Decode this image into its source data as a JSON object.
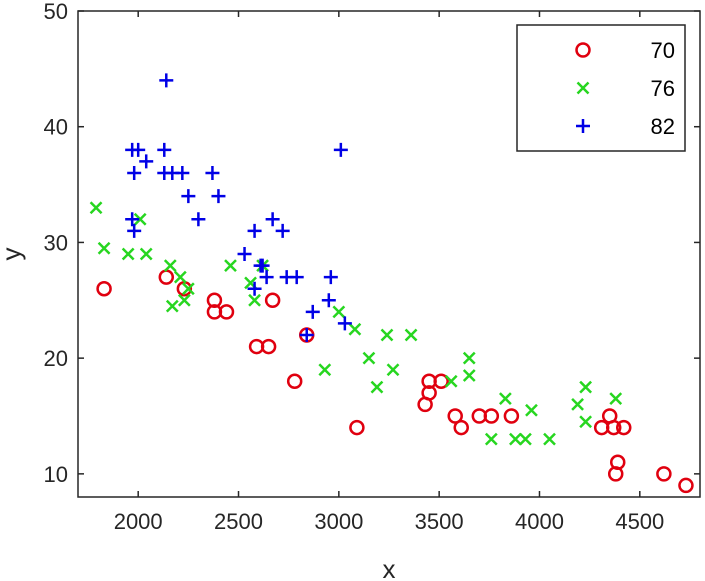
{
  "chart_data": {
    "type": "scatter",
    "title": "",
    "xlabel": "x",
    "ylabel": "y",
    "xlim": [
      1700,
      4800
    ],
    "ylim": [
      8,
      50
    ],
    "xticks": [
      2000,
      2500,
      3000,
      3500,
      4000,
      4500
    ],
    "yticks": [
      10,
      20,
      30,
      40,
      50
    ],
    "grid": false,
    "legend_position": "top-right",
    "series": [
      {
        "name": "70",
        "marker": "circle",
        "color": "#e0000f",
        "points": [
          [
            1830,
            26
          ],
          [
            2140,
            27
          ],
          [
            2230,
            26
          ],
          [
            2380,
            25
          ],
          [
            2380,
            24
          ],
          [
            2440,
            24
          ],
          [
            2590,
            21
          ],
          [
            2650,
            21
          ],
          [
            2670,
            25
          ],
          [
            2780,
            18
          ],
          [
            2840,
            22
          ],
          [
            3090,
            14
          ],
          [
            3430,
            16
          ],
          [
            3450,
            17
          ],
          [
            3450,
            18
          ],
          [
            3510,
            18
          ],
          [
            3580,
            15
          ],
          [
            3610,
            14
          ],
          [
            3700,
            15
          ],
          [
            3760,
            15
          ],
          [
            3860,
            15
          ],
          [
            4310,
            14
          ],
          [
            4350,
            15
          ],
          [
            4370,
            14
          ],
          [
            4380,
            10
          ],
          [
            4390,
            11
          ],
          [
            4420,
            14
          ],
          [
            4620,
            10
          ],
          [
            4730,
            9
          ]
        ]
      },
      {
        "name": "76",
        "marker": "x",
        "color": "#27d620",
        "points": [
          [
            1790,
            33
          ],
          [
            1830,
            29.5
          ],
          [
            1950,
            29
          ],
          [
            2010,
            32
          ],
          [
            2040,
            29
          ],
          [
            2160,
            28
          ],
          [
            2170,
            24.5
          ],
          [
            2210,
            27
          ],
          [
            2230,
            25
          ],
          [
            2250,
            26
          ],
          [
            2460,
            28
          ],
          [
            2580,
            25
          ],
          [
            2560,
            26.5
          ],
          [
            2620,
            28
          ],
          [
            3000,
            24
          ],
          [
            2930,
            19
          ],
          [
            3080,
            22.5
          ],
          [
            3150,
            20
          ],
          [
            3190,
            17.5
          ],
          [
            3240,
            22
          ],
          [
            3270,
            19
          ],
          [
            3360,
            22
          ],
          [
            3560,
            18
          ],
          [
            3650,
            18.5
          ],
          [
            3650,
            20
          ],
          [
            3760,
            13
          ],
          [
            3830,
            16.5
          ],
          [
            3880,
            13
          ],
          [
            3930,
            13
          ],
          [
            3960,
            15.5
          ],
          [
            4050,
            13
          ],
          [
            4190,
            16
          ],
          [
            4230,
            17.5
          ],
          [
            4230,
            14.5
          ],
          [
            4380,
            16.5
          ]
        ]
      },
      {
        "name": "82",
        "marker": "plus",
        "color": "#0000e6",
        "points": [
          [
            1970,
            38
          ],
          [
            2000,
            38
          ],
          [
            1980,
            36
          ],
          [
            1970,
            32
          ],
          [
            1980,
            31
          ],
          [
            2040,
            37
          ],
          [
            2140,
            44
          ],
          [
            2130,
            38
          ],
          [
            2130,
            36
          ],
          [
            2170,
            36
          ],
          [
            2220,
            36
          ],
          [
            2250,
            34
          ],
          [
            2300,
            32
          ],
          [
            2370,
            36
          ],
          [
            2400,
            34
          ],
          [
            2530,
            29
          ],
          [
            2580,
            31
          ],
          [
            2580,
            26
          ],
          [
            2610,
            28
          ],
          [
            2620,
            28
          ],
          [
            2640,
            27
          ],
          [
            2670,
            32
          ],
          [
            2720,
            31
          ],
          [
            2740,
            27
          ],
          [
            2790,
            27
          ],
          [
            2840,
            22
          ],
          [
            2870,
            24
          ],
          [
            2950,
            25
          ],
          [
            2960,
            27
          ],
          [
            3030,
            23
          ],
          [
            3010,
            38
          ]
        ]
      }
    ]
  }
}
